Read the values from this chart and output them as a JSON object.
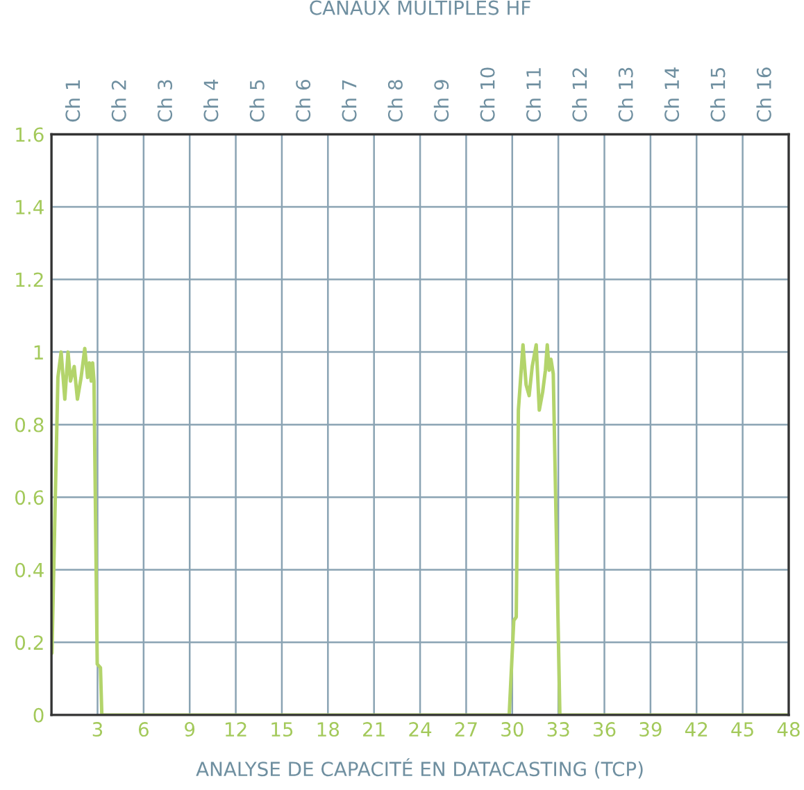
{
  "chart_data": {
    "type": "line",
    "title": "CANAUX MULTIPLES HF",
    "xlabel": "ANALYSE DE CAPACITÉ EN DATACASTING (TCP)",
    "series": [
      {
        "color": "#b3d46b",
        "x": [
          0.03,
          0.42,
          0.63,
          0.87,
          1.08,
          1.24,
          1.48,
          1.69,
          1.93,
          2.17,
          2.35,
          2.47,
          2.59,
          2.68,
          2.77,
          2.98,
          3.19,
          3.28,
          29.8,
          30.1,
          30.26,
          30.4,
          30.7,
          30.9,
          31.1,
          31.3,
          31.56,
          31.76,
          31.98,
          32.16,
          32.28,
          32.4,
          32.52,
          32.67,
          33.1,
          48
        ],
        "values": [
          0.17,
          0.93,
          1.0,
          0.87,
          1.0,
          0.92,
          0.96,
          0.87,
          0.93,
          1.01,
          0.93,
          0.97,
          0.92,
          0.97,
          0.92,
          0.14,
          0.13,
          0,
          0,
          0.26,
          0.27,
          0.84,
          1.02,
          0.91,
          0.88,
          0.96,
          1.02,
          0.84,
          0.89,
          0.95,
          1.02,
          0.95,
          0.98,
          0.94,
          0,
          0
        ]
      }
    ],
    "xlim": [
      0,
      48
    ],
    "xticks": [
      {
        "value": 0,
        "label": null
      },
      3,
      6,
      9,
      12,
      15,
      18,
      21,
      24,
      27,
      30,
      33,
      36,
      39,
      42,
      45,
      48
    ],
    "ylim": [
      0,
      1.6
    ],
    "yticks": [
      0,
      0.2,
      0.4,
      0.6,
      0.8,
      1,
      1.2,
      1.4,
      1.6
    ],
    "annotations": [
      "Ch 1",
      "Ch 2",
      "Ch 3",
      "Ch 4",
      "Ch 5",
      "Ch 6",
      "Ch 7",
      "Ch 8",
      "Ch 9",
      "Ch 10",
      "Ch 11",
      "Ch 12",
      "Ch 13",
      "Ch 14",
      "Ch 15",
      "Ch 16"
    ],
    "grid": true,
    "legend": false,
    "marker": "none",
    "line_style": "solid"
  }
}
